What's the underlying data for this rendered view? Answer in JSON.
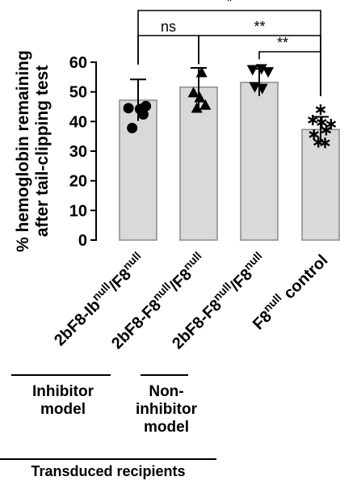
{
  "chart_data": {
    "type": "bar",
    "ylabel_lines": [
      "% hemoglobin remaining",
      "after tail-clipping test"
    ],
    "ylim": [
      0,
      60
    ],
    "yticks": [
      0,
      10,
      20,
      30,
      40,
      50,
      60
    ],
    "bar_color": "#d9d9d9",
    "categories": [
      {
        "id": "ib",
        "parts": [
          [
            "2bF8-Ib",
            false
          ],
          [
            "null",
            true
          ],
          [
            "/F8",
            false
          ],
          [
            "null",
            true
          ]
        ]
      },
      {
        "id": "f8a",
        "parts": [
          [
            "2bF8-F8",
            false
          ],
          [
            "null",
            true
          ],
          [
            "/F8",
            false
          ],
          [
            "null",
            true
          ]
        ]
      },
      {
        "id": "f8b",
        "parts": [
          [
            "2bF8-F8",
            false
          ],
          [
            "null",
            true
          ],
          [
            "/F8",
            false
          ],
          [
            "null",
            true
          ]
        ]
      },
      {
        "id": "ctrl",
        "parts": [
          [
            "F8",
            false
          ],
          [
            "null",
            true
          ],
          [
            " control",
            false
          ]
        ]
      }
    ],
    "bars": [
      {
        "mean": 47.2,
        "sd": 7.0,
        "marker": "circle",
        "points": [
          [
            -0.26,
            44.5
          ],
          [
            0.21,
            45.2
          ],
          [
            0.05,
            44.2
          ],
          [
            -0.16,
            37.8
          ],
          [
            0.14,
            42.4
          ]
        ]
      },
      {
        "mean": 51.6,
        "sd": 6.5,
        "marker": "triangle-up",
        "points": [
          [
            0.08,
            56.6
          ],
          [
            -0.14,
            49.8
          ],
          [
            0.03,
            48.1
          ],
          [
            -0.05,
            44.6
          ],
          [
            0.18,
            45.6
          ]
        ]
      },
      {
        "mean": 53.2,
        "sd": 4.6,
        "marker": "triangle-down",
        "points": [
          [
            -0.18,
            57.4
          ],
          [
            0.06,
            57.7
          ],
          [
            0.24,
            56.7
          ],
          [
            -0.12,
            51.6
          ],
          [
            0.08,
            51.1
          ]
        ]
      },
      {
        "mean": 37.3,
        "sd": 4.3,
        "marker": "star",
        "points": [
          [
            0.0,
            44.0
          ],
          [
            -0.21,
            40.5
          ],
          [
            0.03,
            39.7
          ],
          [
            0.28,
            39.1
          ],
          [
            0.15,
            37.1
          ],
          [
            -0.18,
            35.6
          ],
          [
            -0.06,
            33.0
          ],
          [
            0.12,
            32.8
          ]
        ]
      }
    ],
    "significance": [
      {
        "from": 0,
        "to": 3,
        "label": "*"
      },
      {
        "from": 0,
        "to": 1,
        "label": "ns"
      },
      {
        "from": 1,
        "to": 3,
        "label": "**"
      },
      {
        "from": 2,
        "to": 3,
        "label": "**"
      }
    ]
  },
  "groups": {
    "inhibitor": "Inhibitor\nmodel",
    "non_inhibitor": "Non-\ninhibitor\nmodel",
    "recipients": "Transduced recipients"
  }
}
